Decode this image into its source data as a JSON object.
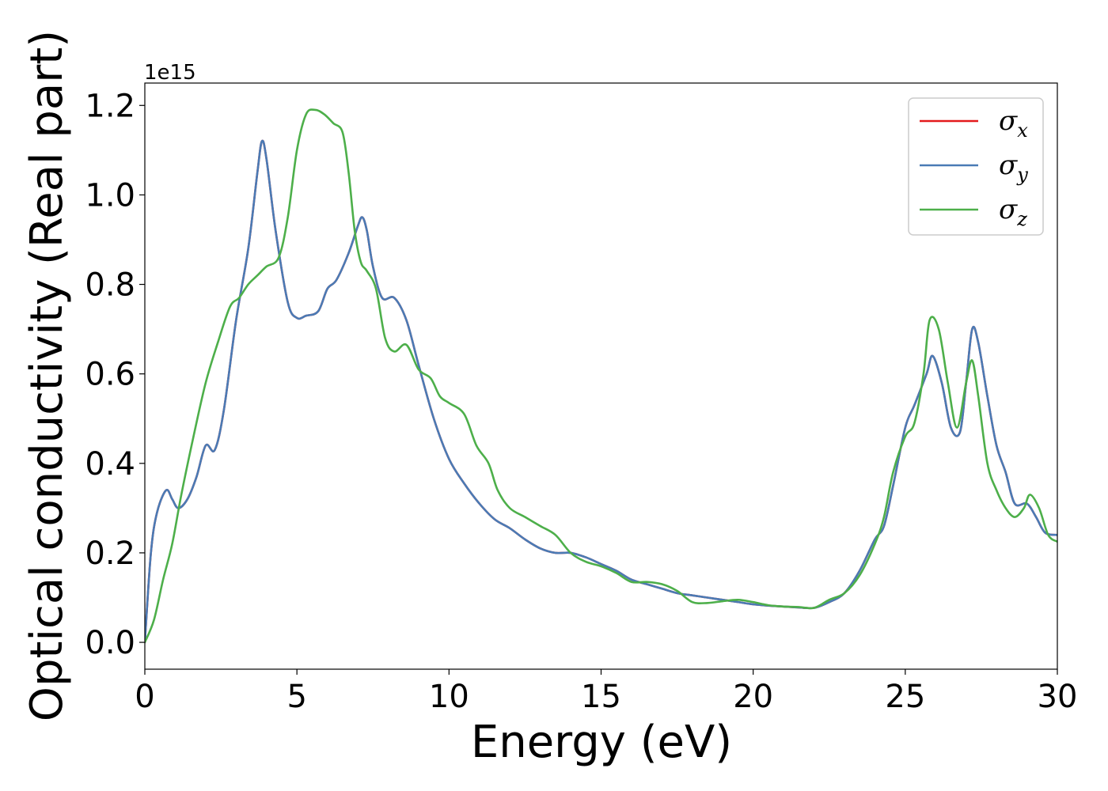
{
  "chart_data": {
    "type": "line",
    "xlabel": "Energy (eV)",
    "ylabel": "Optical conductivity (Real part)",
    "y_offset_label": "1e15",
    "xlim": [
      0,
      30
    ],
    "ylim": [
      -0.06,
      1.25
    ],
    "x_ticks": [
      "0",
      "5",
      "10",
      "15",
      "20",
      "25",
      "30"
    ],
    "y_ticks": [
      "0.0",
      "0.2",
      "0.4",
      "0.6",
      "0.8",
      "1.0",
      "1.2"
    ],
    "grid": false,
    "legend_position": "top-right",
    "series": [
      {
        "name": "σx",
        "symbol": "σ",
        "subscript": "x",
        "color": "#e41a1c",
        "x": [
          0,
          0.2,
          0.4,
          0.7,
          0.9,
          1.1,
          1.4,
          1.7,
          2.0,
          2.3,
          2.6,
          3.0,
          3.4,
          3.7,
          3.85,
          4.0,
          4.3,
          4.7,
          5.0,
          5.3,
          5.7,
          6.0,
          6.3,
          6.7,
          7.0,
          7.15,
          7.3,
          7.5,
          7.8,
          8.2,
          8.6,
          9.0,
          9.5,
          10.0,
          10.5,
          11.0,
          11.5,
          12.0,
          12.5,
          13.0,
          13.5,
          14.0,
          14.5,
          15.0,
          15.5,
          16.0,
          16.5,
          17.0,
          17.5,
          18.0,
          18.5,
          19.0,
          19.5,
          20.0,
          20.5,
          21.0,
          21.5,
          22.0,
          22.5,
          23.0,
          23.5,
          24.0,
          24.3,
          24.6,
          25.0,
          25.3,
          25.7,
          25.9,
          26.2,
          26.5,
          26.8,
          27.0,
          27.2,
          27.4,
          27.7,
          28.0,
          28.3,
          28.6,
          29.0,
          29.3,
          29.6,
          30.0
        ],
        "y": [
          0.0,
          0.2,
          0.29,
          0.34,
          0.32,
          0.3,
          0.32,
          0.37,
          0.44,
          0.43,
          0.52,
          0.72,
          0.88,
          1.05,
          1.12,
          1.08,
          0.92,
          0.76,
          0.725,
          0.73,
          0.74,
          0.79,
          0.81,
          0.87,
          0.93,
          0.95,
          0.92,
          0.84,
          0.77,
          0.77,
          0.72,
          0.62,
          0.5,
          0.41,
          0.355,
          0.31,
          0.275,
          0.255,
          0.23,
          0.21,
          0.2,
          0.2,
          0.19,
          0.175,
          0.16,
          0.14,
          0.13,
          0.12,
          0.11,
          0.105,
          0.1,
          0.095,
          0.09,
          0.085,
          0.082,
          0.08,
          0.078,
          0.077,
          0.09,
          0.11,
          0.16,
          0.23,
          0.26,
          0.35,
          0.48,
          0.53,
          0.6,
          0.64,
          0.58,
          0.48,
          0.47,
          0.58,
          0.7,
          0.67,
          0.55,
          0.44,
          0.38,
          0.31,
          0.31,
          0.28,
          0.245,
          0.24
        ]
      },
      {
        "name": "σy",
        "symbol": "σ",
        "subscript": "y",
        "color": "#4a7bb5",
        "x": [
          0,
          0.2,
          0.4,
          0.7,
          0.9,
          1.1,
          1.4,
          1.7,
          2.0,
          2.3,
          2.6,
          3.0,
          3.4,
          3.7,
          3.85,
          4.0,
          4.3,
          4.7,
          5.0,
          5.3,
          5.7,
          6.0,
          6.3,
          6.7,
          7.0,
          7.15,
          7.3,
          7.5,
          7.8,
          8.2,
          8.6,
          9.0,
          9.5,
          10.0,
          10.5,
          11.0,
          11.5,
          12.0,
          12.5,
          13.0,
          13.5,
          14.0,
          14.5,
          15.0,
          15.5,
          16.0,
          16.5,
          17.0,
          17.5,
          18.0,
          18.5,
          19.0,
          19.5,
          20.0,
          20.5,
          21.0,
          21.5,
          22.0,
          22.5,
          23.0,
          23.5,
          24.0,
          24.3,
          24.6,
          25.0,
          25.3,
          25.7,
          25.9,
          26.2,
          26.5,
          26.8,
          27.0,
          27.2,
          27.4,
          27.7,
          28.0,
          28.3,
          28.6,
          29.0,
          29.3,
          29.6,
          30.0
        ],
        "y": [
          0.0,
          0.2,
          0.29,
          0.34,
          0.32,
          0.3,
          0.32,
          0.37,
          0.44,
          0.43,
          0.52,
          0.72,
          0.88,
          1.05,
          1.12,
          1.08,
          0.92,
          0.76,
          0.725,
          0.73,
          0.74,
          0.79,
          0.81,
          0.87,
          0.93,
          0.95,
          0.92,
          0.84,
          0.77,
          0.77,
          0.72,
          0.62,
          0.5,
          0.41,
          0.355,
          0.31,
          0.275,
          0.255,
          0.23,
          0.21,
          0.2,
          0.2,
          0.19,
          0.175,
          0.16,
          0.14,
          0.13,
          0.12,
          0.11,
          0.105,
          0.1,
          0.095,
          0.09,
          0.085,
          0.082,
          0.08,
          0.078,
          0.077,
          0.09,
          0.11,
          0.16,
          0.23,
          0.26,
          0.35,
          0.48,
          0.53,
          0.6,
          0.64,
          0.58,
          0.48,
          0.47,
          0.58,
          0.7,
          0.67,
          0.55,
          0.44,
          0.38,
          0.31,
          0.31,
          0.28,
          0.245,
          0.24
        ]
      },
      {
        "name": "σz",
        "symbol": "σ",
        "subscript": "z",
        "color": "#4daf4a",
        "x": [
          0,
          0.3,
          0.6,
          0.9,
          1.2,
          1.6,
          2.0,
          2.4,
          2.8,
          3.1,
          3.4,
          3.7,
          4.0,
          4.4,
          4.7,
          5.0,
          5.3,
          5.6,
          5.9,
          6.2,
          6.5,
          6.7,
          6.9,
          7.1,
          7.3,
          7.6,
          7.9,
          8.2,
          8.6,
          9.0,
          9.4,
          9.7,
          10.0,
          10.5,
          10.9,
          11.3,
          11.6,
          12.0,
          12.5,
          13.0,
          13.5,
          14.0,
          14.5,
          15.0,
          15.5,
          16.0,
          16.5,
          17.0,
          17.5,
          18.0,
          18.5,
          19.0,
          19.5,
          20.0,
          20.5,
          21.0,
          21.5,
          22.0,
          22.5,
          23.0,
          23.5,
          24.0,
          24.3,
          24.6,
          25.0,
          25.3,
          25.6,
          25.8,
          26.1,
          26.4,
          26.7,
          27.0,
          27.2,
          27.4,
          27.7,
          28.0,
          28.3,
          28.6,
          28.9,
          29.1,
          29.4,
          29.7,
          30.0
        ],
        "y": [
          0.0,
          0.05,
          0.14,
          0.22,
          0.33,
          0.46,
          0.58,
          0.67,
          0.75,
          0.77,
          0.8,
          0.82,
          0.84,
          0.86,
          0.95,
          1.1,
          1.18,
          1.19,
          1.18,
          1.16,
          1.14,
          1.05,
          0.92,
          0.85,
          0.83,
          0.79,
          0.68,
          0.65,
          0.665,
          0.61,
          0.59,
          0.55,
          0.535,
          0.51,
          0.44,
          0.4,
          0.34,
          0.3,
          0.28,
          0.26,
          0.24,
          0.2,
          0.18,
          0.17,
          0.155,
          0.135,
          0.135,
          0.13,
          0.115,
          0.09,
          0.088,
          0.092,
          0.095,
          0.09,
          0.083,
          0.08,
          0.079,
          0.077,
          0.095,
          0.11,
          0.15,
          0.22,
          0.28,
          0.38,
          0.46,
          0.49,
          0.6,
          0.72,
          0.7,
          0.58,
          0.48,
          0.58,
          0.63,
          0.55,
          0.4,
          0.34,
          0.3,
          0.28,
          0.3,
          0.33,
          0.3,
          0.24,
          0.225
        ]
      }
    ]
  }
}
